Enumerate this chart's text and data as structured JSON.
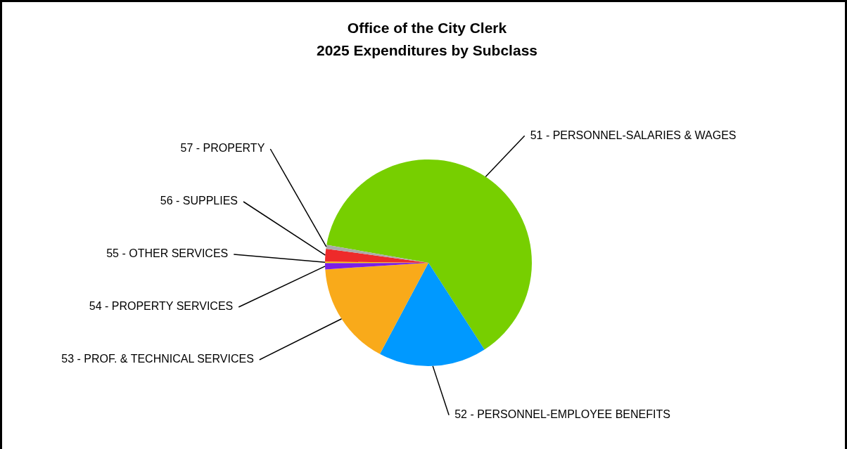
{
  "chart_data": {
    "type": "pie",
    "title": "Office of the City Clerk\n2025 Expenditures by Subclass",
    "categories": [
      "51 - PERSONNEL-SALARIES & WAGES",
      "52 - PERSONNEL-EMPLOYEE BENEFITS",
      "53 - PROF. & TECHNICAL SERVICES",
      "54 - PROPERTY SERVICES",
      "55 - OTHER SERVICES",
      "56 - SUPPLIES",
      "57 - PROPERTY"
    ],
    "values": [
      63.1,
      16.9,
      16.2,
      1,
      0.2,
      2,
      0.6
    ],
    "colors": [
      "#77cf00",
      "#0099ff",
      "#f9aa1a",
      "#7a1fe6",
      "#f5d000",
      "#ee2a2a",
      "#aaaaaa"
    ],
    "legend": false
  }
}
